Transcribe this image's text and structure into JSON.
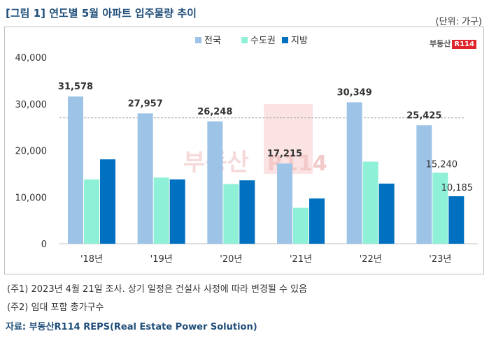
{
  "title": "[그림 1] 연도별 5월 아파트 입주물량 추이",
  "unit": "(단위: 가구)",
  "logo": {
    "text": "부동산",
    "badge": "R114"
  },
  "watermark": {
    "text": "부동산",
    "badge": "R114"
  },
  "notes": [
    "(주1) 2023년 4월 21일 조사. 상기 일정은 건설사 사정에 따라 변경될 수 있음",
    "(주2) 임대 포함 총가구수"
  ],
  "source": "자료: 부동산R114 REPS(Real Estate Power Solution)",
  "chart_data": {
    "type": "bar",
    "categories": [
      "'18년",
      "'19년",
      "'20년",
      "'21년",
      "'22년",
      "'23년"
    ],
    "series": [
      {
        "name": "전국",
        "color": "#9dc3e6",
        "values": [
          31578,
          27957,
          26248,
          17215,
          30349,
          25425
        ]
      },
      {
        "name": "수도권",
        "color": "#8ff0d8",
        "values": [
          13800,
          14200,
          12800,
          7700,
          17600,
          15240
        ]
      },
      {
        "name": "지방",
        "color": "#0070c0",
        "values": [
          18100,
          13800,
          13600,
          9700,
          12900,
          10185
        ]
      }
    ],
    "labels": {
      "전국": [
        "31,578",
        "27,957",
        "26,248",
        "17,215",
        "30,349",
        "25,425"
      ],
      "수도권_23": "15,240",
      "지방_23": "10,185"
    },
    "yticks": [
      "0",
      "10,000",
      "20,000",
      "30,000",
      "40,000"
    ],
    "ylim": [
      0,
      40000
    ],
    "reference_line": 27000,
    "legend_position": "top-center"
  }
}
